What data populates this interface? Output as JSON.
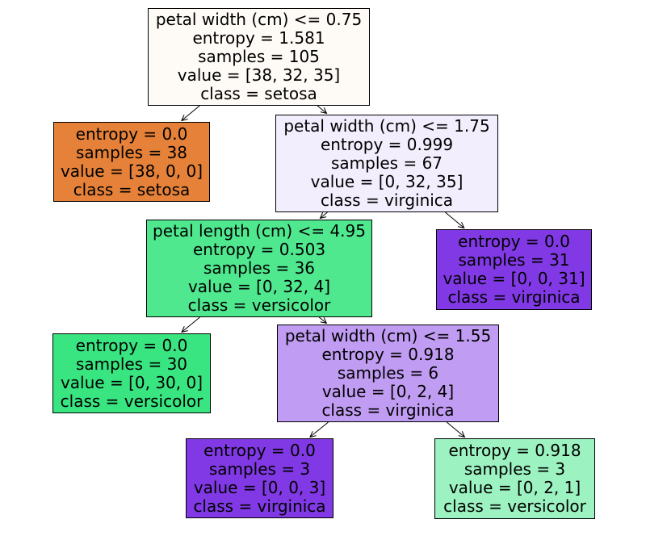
{
  "diagram_type": "decision-tree",
  "nodes": [
    {
      "role": "root-split",
      "lines": [
        "petal width (cm) <= 0.75",
        "entropy = 1.581",
        "samples = 105",
        "value = [38, 32, 35]",
        "class = setosa"
      ],
      "bg": "#fefaf6"
    },
    {
      "role": "leaf",
      "lines": [
        "entropy = 0.0",
        "samples = 38",
        "value = [38, 0, 0]",
        "class = setosa"
      ],
      "bg": "#e58139"
    },
    {
      "role": "split",
      "lines": [
        "petal width (cm) <= 1.75",
        "entropy = 0.999",
        "samples = 67",
        "value = [0, 32, 35]",
        "class = virginica"
      ],
      "bg": "#f3eefd"
    },
    {
      "role": "split",
      "lines": [
        "petal length (cm) <= 4.95",
        "entropy = 0.503",
        "samples = 36",
        "value = [0, 32, 4]",
        "class = versicolor"
      ],
      "bg": "#4fe88f"
    },
    {
      "role": "leaf",
      "lines": [
        "entropy = 0.0",
        "samples = 31",
        "value = [0, 0, 31]",
        "class = virginica"
      ],
      "bg": "#8139e5"
    },
    {
      "role": "leaf",
      "lines": [
        "entropy = 0.0",
        "samples = 30",
        "value = [0, 30, 0]",
        "class = versicolor"
      ],
      "bg": "#39e581"
    },
    {
      "role": "split",
      "lines": [
        "petal width (cm) <= 1.55",
        "entropy = 0.918",
        "samples = 6",
        "value = [0, 2, 4]",
        "class = virginica"
      ],
      "bg": "#c09cf2"
    },
    {
      "role": "leaf",
      "lines": [
        "entropy = 0.0",
        "samples = 3",
        "value = [0, 0, 3]",
        "class = virginica"
      ],
      "bg": "#8139e5"
    },
    {
      "role": "leaf",
      "lines": [
        "entropy = 0.918",
        "samples = 3",
        "value = [0, 2, 1]",
        "class = versicolor"
      ],
      "bg": "#9cf2c0"
    }
  ],
  "edges": [
    [
      0,
      1
    ],
    [
      0,
      2
    ],
    [
      2,
      3
    ],
    [
      2,
      4
    ],
    [
      3,
      5
    ],
    [
      3,
      6
    ],
    [
      6,
      7
    ],
    [
      6,
      8
    ]
  ],
  "colors": {
    "edge_line": "#000000",
    "node_border": "#000000",
    "text": "#000000"
  }
}
